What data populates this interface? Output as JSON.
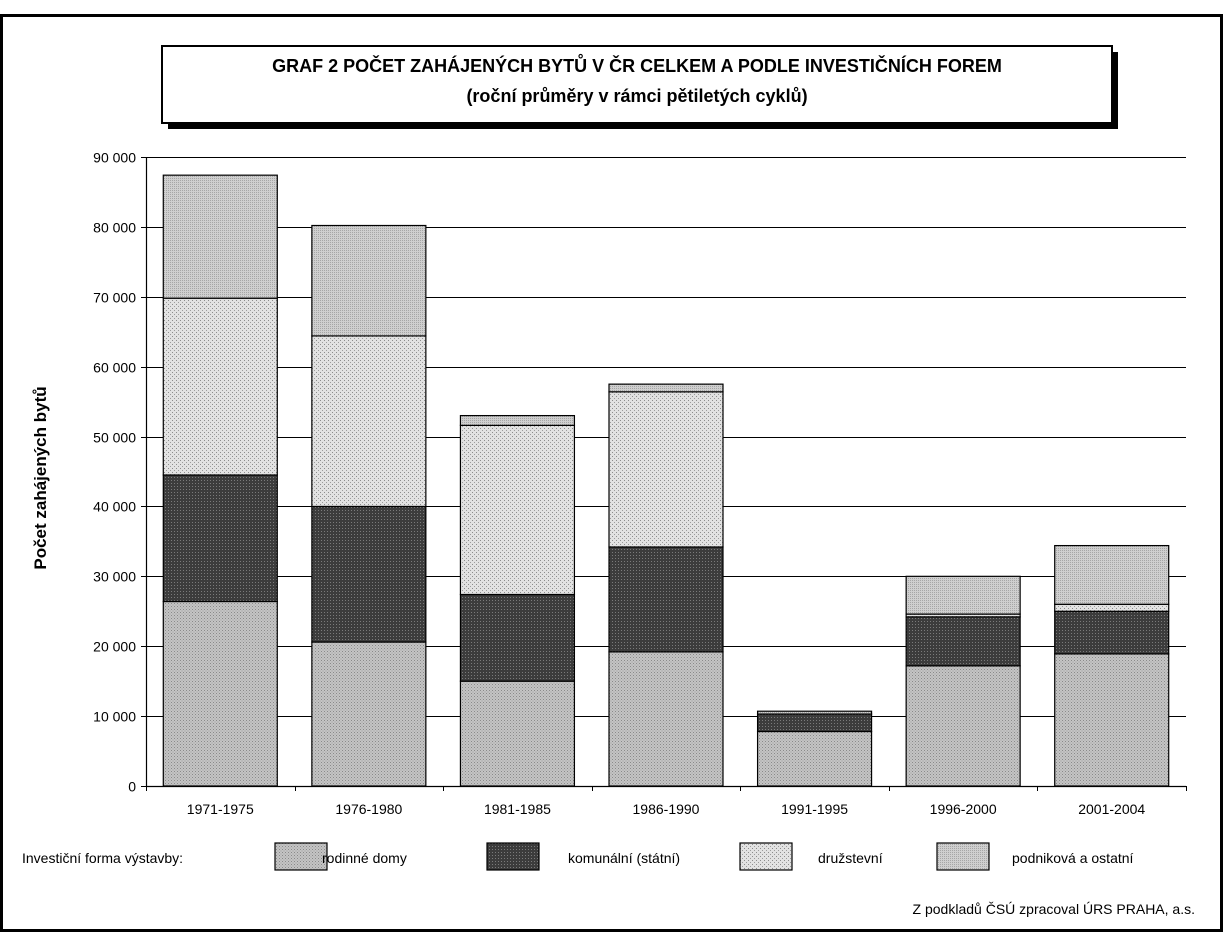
{
  "chart_data": {
    "type": "bar",
    "stacked": true,
    "title_line1": "GRAF 2  POČET ZAHÁJENÝCH BYTŮ V ČR CELKEM  A PODLE INVESTIČNÍCH FOREM",
    "title_line2": "(roční průměry v rámci pětiletých cyklů)",
    "ylabel": "Počet zahájených bytů",
    "xlabel": "",
    "ylim": [
      0,
      90000
    ],
    "y_ticks": [
      {
        "value": 0,
        "label": "0"
      },
      {
        "value": 10000,
        "label": "10 000"
      },
      {
        "value": 20000,
        "label": "20 000"
      },
      {
        "value": 30000,
        "label": "30 000"
      },
      {
        "value": 40000,
        "label": "40 000"
      },
      {
        "value": 50000,
        "label": "50 000"
      },
      {
        "value": 60000,
        "label": "60 000"
      },
      {
        "value": 70000,
        "label": "70 000"
      },
      {
        "value": 80000,
        "label": "80 000"
      },
      {
        "value": 90000,
        "label": "90 000"
      }
    ],
    "grid": true,
    "categories": [
      "1971-1975",
      "1976-1980",
      "1981-1985",
      "1986-1990",
      "1991-1995",
      "1996-2000",
      "2001-2004"
    ],
    "series": [
      {
        "name": "rodinné domy",
        "values": [
          26400,
          20600,
          15000,
          19200,
          7800,
          17200,
          18900
        ]
      },
      {
        "name": "komunální (státní)",
        "values": [
          18100,
          19400,
          12400,
          15000,
          2500,
          7000,
          6100
        ]
      },
      {
        "name": "družstevní",
        "values": [
          25300,
          24400,
          24200,
          22200,
          0,
          400,
          1000
        ]
      },
      {
        "name": "podniková a ostatní",
        "values": [
          17600,
          15800,
          1400,
          1100,
          400,
          5400,
          8400
        ]
      }
    ],
    "series_colors": [
      "#b9b9b9",
      "#3a3a3a",
      "#d6d6d6",
      "#e4e4e4"
    ],
    "legend_title": "Investiční forma výstavby:",
    "legend_position": "bottom",
    "source_note": "Z podkladů ČSÚ zpracoval ÚRS PRAHA, a.s."
  }
}
